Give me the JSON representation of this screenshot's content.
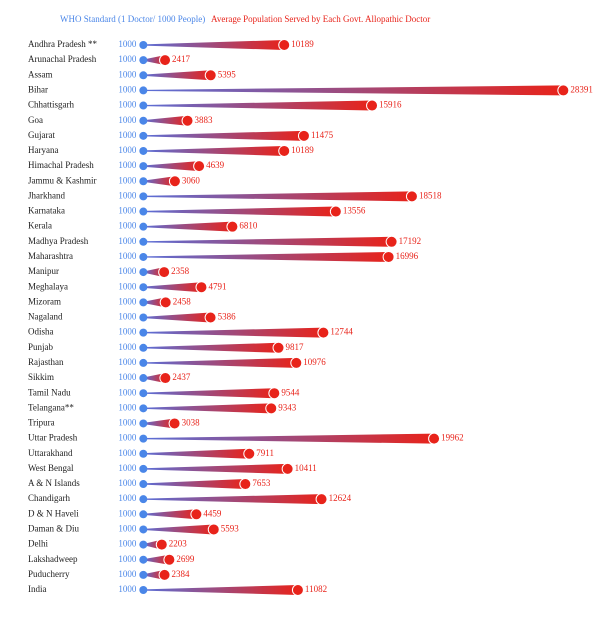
{
  "chart_data": {
    "type": "dumbbell",
    "categories": [
      "Andhra Pradesh **",
      "Arunachal Pradesh",
      "Assam",
      "Bihar",
      "Chhattisgarh",
      "Goa",
      "Gujarat",
      "Haryana",
      "Himachal Pradesh",
      "Jammu & Kashmir",
      "Jharkhand",
      "Karnataka",
      "Kerala",
      "Madhya Pradesh",
      "Maharashtra",
      "Manipur",
      "Meghalaya",
      "Mizoram",
      "Nagaland",
      "Odisha",
      "Punjab",
      "Rajasthan",
      "Sikkim",
      "Tamil Nadu",
      "Telangana**",
      "Tripura",
      "Uttar Pradesh",
      "Uttarakhand",
      "West Bengal",
      "A & N Islands",
      "Chandigarh",
      "D & N Haveli",
      "Daman & Diu",
      "Delhi",
      "Lakshadweep",
      "Puducherry",
      "India"
    ],
    "series": [
      {
        "name": "WHO Standard (1 Doctor/ 1000 People)",
        "color": "#4a86e8",
        "values": [
          1000,
          1000,
          1000,
          1000,
          1000,
          1000,
          1000,
          1000,
          1000,
          1000,
          1000,
          1000,
          1000,
          1000,
          1000,
          1000,
          1000,
          1000,
          1000,
          1000,
          1000,
          1000,
          1000,
          1000,
          1000,
          1000,
          1000,
          1000,
          1000,
          1000,
          1000,
          1000,
          1000,
          1000,
          1000,
          1000,
          1000
        ]
      },
      {
        "name": "Average Population Served by Each Govt. Allopathic Doctor",
        "color": "#e8231a",
        "values": [
          10189,
          2417,
          5395,
          28391,
          15916,
          3883,
          11475,
          10189,
          4639,
          3060,
          18518,
          13556,
          6810,
          17192,
          16996,
          2358,
          4791,
          2458,
          5386,
          12744,
          9817,
          10976,
          2437,
          9544,
          9343,
          3038,
          19962,
          7911,
          10411,
          7653,
          12624,
          4459,
          5593,
          2203,
          2699,
          2384,
          11082
        ]
      }
    ],
    "xlim": [
      0,
      30000
    ]
  }
}
